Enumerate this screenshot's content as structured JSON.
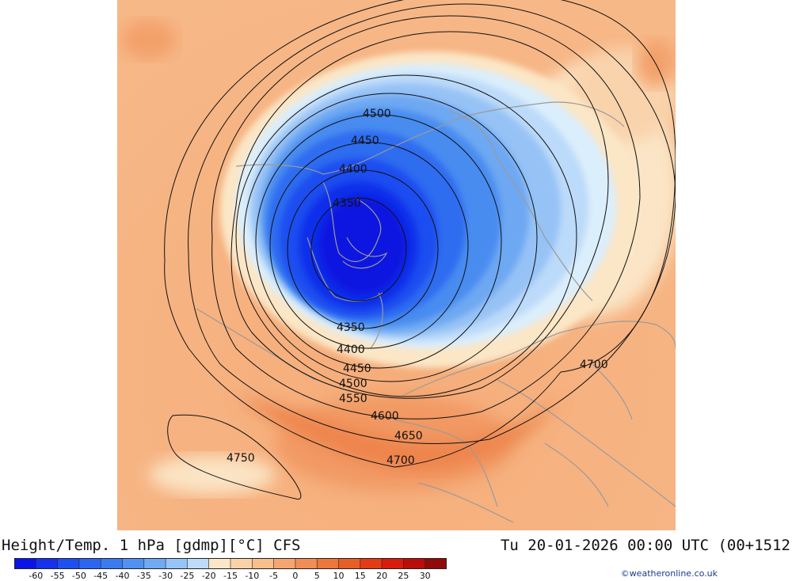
{
  "map": {
    "contour_labels": [
      {
        "id": "lbl-4500-top",
        "text": "4500"
      },
      {
        "id": "lbl-4450-top",
        "text": "4450"
      },
      {
        "id": "lbl-4400-top",
        "text": "4400"
      },
      {
        "id": "lbl-4350-top",
        "text": "4350"
      },
      {
        "id": "lbl-4350-bot",
        "text": "4350"
      },
      {
        "id": "lbl-4400-bot",
        "text": "4400"
      },
      {
        "id": "lbl-4450-bot",
        "text": "4450"
      },
      {
        "id": "lbl-4500-bot",
        "text": "4500"
      },
      {
        "id": "lbl-4550",
        "text": "4550"
      },
      {
        "id": "lbl-4600",
        "text": "4600"
      },
      {
        "id": "lbl-4650",
        "text": "4650"
      },
      {
        "id": "lbl-4700-bot",
        "text": "4700"
      },
      {
        "id": "lbl-4700-right",
        "text": "4700"
      },
      {
        "id": "lbl-4750",
        "text": "4750"
      }
    ]
  },
  "footer": {
    "title": "Height/Temp. 1 hPa [gdmp][°C] CFS",
    "valid_time": "Tu 20-01-2026 00:00 UTC (00+1512",
    "credit": "©weatheronline.co.uk"
  },
  "colorbar": {
    "labels": [
      "-60",
      "-55",
      "-50",
      "-45",
      "-40",
      "-35",
      "-30",
      "-25",
      "-20",
      "-15",
      "-10",
      "-5",
      "0",
      "5",
      "10",
      "15",
      "20",
      "25",
      "30"
    ],
    "colors": [
      "#0a14e6",
      "#1432ee",
      "#1e50f0",
      "#2c66f0",
      "#3a7cf0",
      "#5092f0",
      "#70aaf2",
      "#96c4f6",
      "#bedcfa",
      "#fbe7c8",
      "#fbd2a8",
      "#f8be8c",
      "#f5a670",
      "#f08e56",
      "#ec763e",
      "#e85e28",
      "#e43a16",
      "#d81c0c",
      "#bc0e08",
      "#900a08"
    ]
  }
}
